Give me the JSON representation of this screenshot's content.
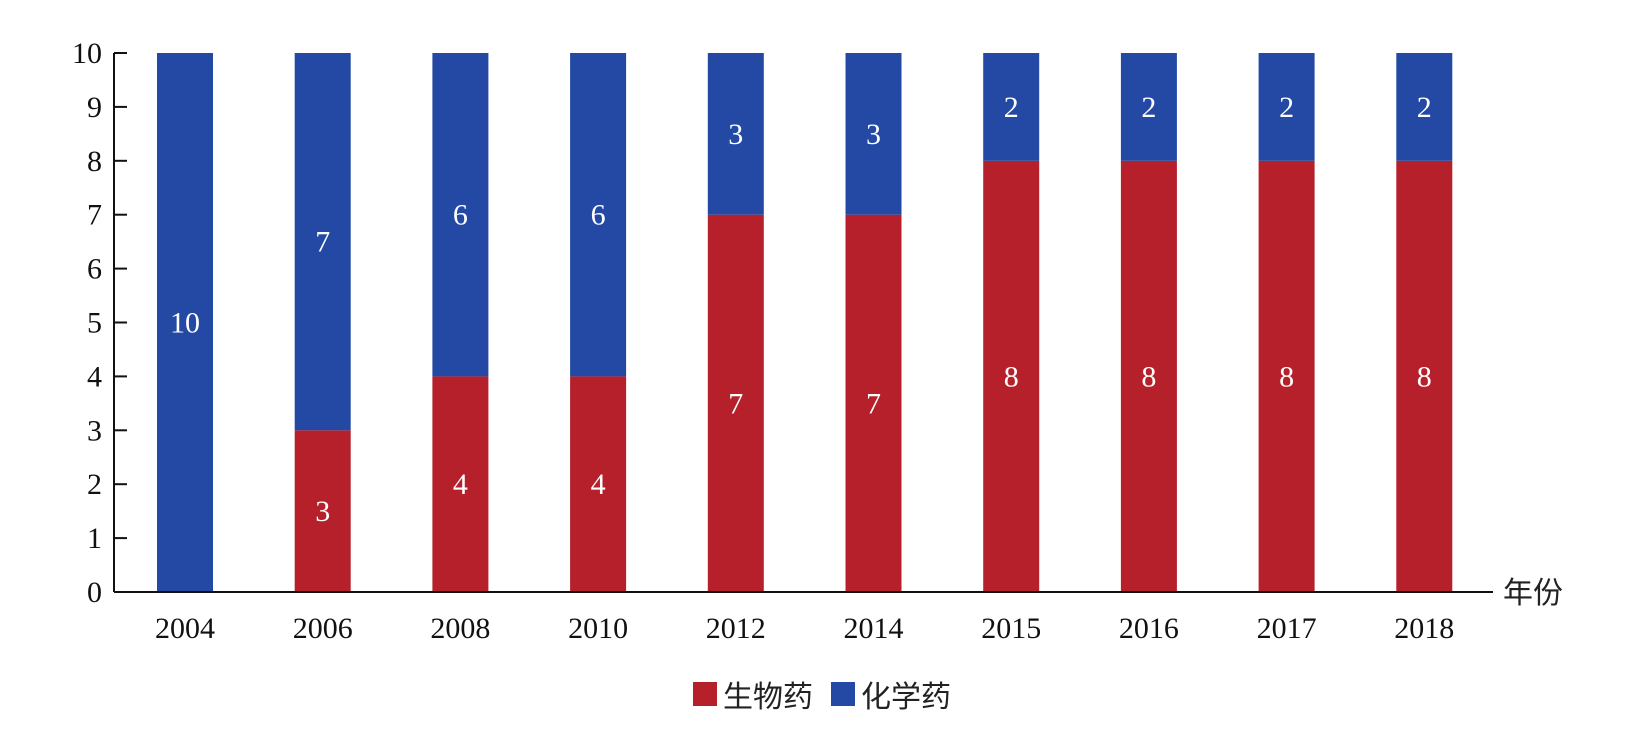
{
  "chart_data": {
    "type": "bar",
    "stacked": true,
    "categories": [
      "2004",
      "2006",
      "2008",
      "2010",
      "2012",
      "2014",
      "2015",
      "2016",
      "2017",
      "2018"
    ],
    "series": [
      {
        "name": "生物药",
        "color": "#B5202B",
        "values": [
          0,
          3,
          4,
          4,
          7,
          7,
          8,
          8,
          8,
          8
        ]
      },
      {
        "name": "化学药",
        "color": "#2349A4",
        "values": [
          10,
          7,
          6,
          6,
          3,
          3,
          2,
          2,
          2,
          2
        ]
      }
    ],
    "xlabel": "年份",
    "ylabel": "",
    "ylim": [
      0,
      10
    ],
    "yticks": [
      0,
      1,
      2,
      3,
      4,
      5,
      6,
      7,
      8,
      9,
      10
    ],
    "data_labels": true,
    "grid": false,
    "legend_position": "bottom"
  }
}
